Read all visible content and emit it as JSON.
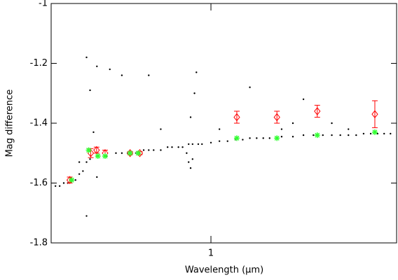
{
  "chart_data": {
    "type": "scatter",
    "x_label": "Wavelength (μm)",
    "y_label": "Mag difference",
    "xlim": [
      0.4,
      2.9
    ],
    "ylim": [
      -1.8,
      -1.0
    ],
    "x_log": true,
    "xticks": [
      1
    ],
    "yticks": [
      -1.8,
      -1.6,
      -1.4,
      -1.2,
      -1.0
    ],
    "series": [
      {
        "color": "#000000",
        "marker": "dot",
        "x": [
          0.41,
          0.42,
          0.43,
          0.44,
          0.45,
          0.46,
          0.47,
          0.48,
          0.49,
          0.5,
          0.52,
          0.55,
          0.58,
          0.6,
          0.62,
          0.65,
          0.68,
          0.7,
          0.72,
          0.75,
          0.78,
          0.8,
          0.83,
          0.85,
          0.88,
          0.9,
          0.93,
          0.95,
          1.0,
          1.05,
          1.1,
          1.15,
          1.2,
          1.25,
          1.3,
          1.35,
          1.4,
          1.5,
          1.6,
          1.7,
          1.8,
          1.9,
          2.0,
          2.1,
          2.2,
          2.3,
          2.4,
          2.5,
          2.6,
          2.7,
          2.8,
          0.49,
          0.5,
          0.52,
          0.56,
          0.6,
          0.49,
          0.52,
          0.7,
          0.92,
          0.91,
          0.89,
          0.88,
          0.89,
          1.05,
          1.25,
          1.6,
          1.7,
          2.0,
          2.2,
          0.75,
          0.51,
          0.47,
          1.5,
          0.9,
          0.87
        ],
        "y": [
          -1.61,
          -1.61,
          -1.6,
          -1.6,
          -1.59,
          -1.59,
          -1.57,
          -1.56,
          -1.53,
          -1.52,
          -1.51,
          -1.51,
          -1.5,
          -1.5,
          -1.5,
          -1.5,
          -1.49,
          -1.49,
          -1.49,
          -1.49,
          -1.48,
          -1.48,
          -1.48,
          -1.48,
          -1.47,
          -1.47,
          -1.47,
          -1.47,
          -1.465,
          -1.46,
          -1.46,
          -1.455,
          -1.455,
          -1.45,
          -1.45,
          -1.45,
          -1.45,
          -1.445,
          -1.445,
          -1.44,
          -1.44,
          -1.44,
          -1.44,
          -1.44,
          -1.44,
          -1.44,
          -1.435,
          -1.435,
          -1.435,
          -1.435,
          -1.435,
          -1.18,
          -1.29,
          -1.21,
          -1.22,
          -1.24,
          -1.71,
          -1.58,
          -1.24,
          -1.23,
          -1.3,
          -1.38,
          -1.53,
          -1.55,
          -1.42,
          -1.28,
          -1.4,
          -1.32,
          -1.4,
          -1.42,
          -1.42,
          -1.43,
          -1.53,
          -1.42,
          -1.52,
          -1.5
        ]
      },
      {
        "color": "#ff0000",
        "marker": "diamond",
        "x": [
          0.445,
          0.502,
          0.519,
          0.545,
          0.629,
          0.665,
          1.16,
          1.46,
          1.84,
          2.56
        ],
        "y": [
          -1.59,
          -1.5,
          -1.49,
          -1.5,
          -1.5,
          -1.5,
          -1.38,
          -1.38,
          -1.36,
          -1.37
        ],
        "err": [
          0.01,
          0.015,
          0.01,
          0.01,
          0.005,
          0.005,
          0.02,
          0.02,
          0.02,
          0.045
        ]
      },
      {
        "color": "#33ff33",
        "marker": "asterisk",
        "x": [
          0.45,
          0.496,
          0.523,
          0.545,
          0.629,
          0.659,
          1.16,
          1.46,
          1.84,
          2.56
        ],
        "y": [
          -1.59,
          -1.49,
          -1.51,
          -1.51,
          -1.5,
          -1.5,
          -1.45,
          -1.45,
          -1.44,
          -1.43
        ]
      }
    ]
  }
}
